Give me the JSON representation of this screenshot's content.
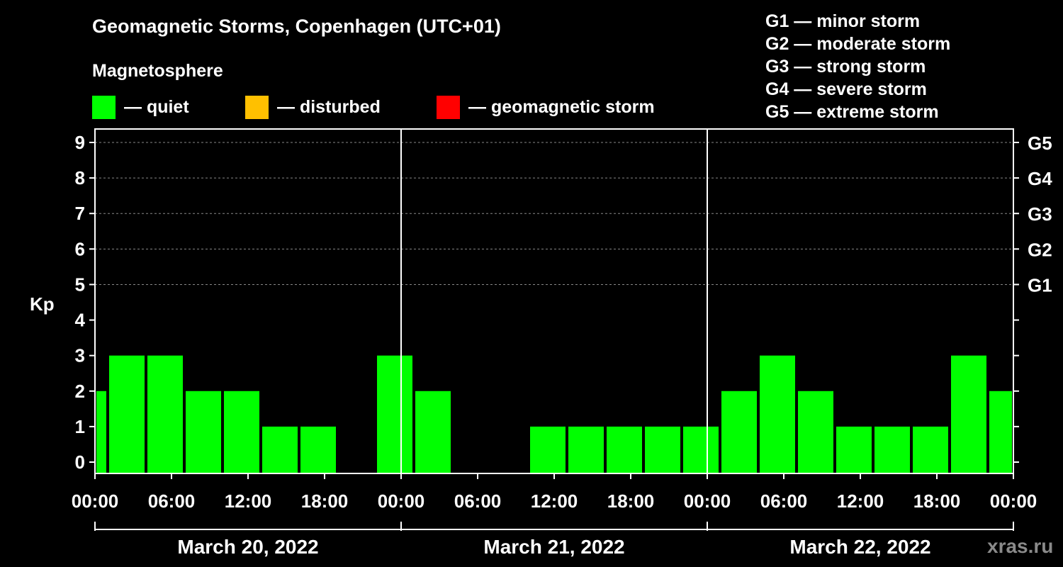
{
  "chart_data": {
    "type": "bar",
    "title": "Geomagnetic Storms, Copenhagen (UTC+01)",
    "subtitle": "Magnetosphere",
    "ylabel": "Kp",
    "ylim": [
      0,
      9
    ],
    "yticks": [
      "0",
      "1",
      "2",
      "3",
      "4",
      "5",
      "6",
      "7",
      "8",
      "9"
    ],
    "y2ticks": [
      {
        "kp": 5,
        "label": "G1"
      },
      {
        "kp": 6,
        "label": "G2"
      },
      {
        "kp": 7,
        "label": "G3"
      },
      {
        "kp": 8,
        "label": "G4"
      },
      {
        "kp": 9,
        "label": "G5"
      }
    ],
    "xticks": [
      "00:00",
      "06:00",
      "12:00",
      "18:00",
      "00:00",
      "06:00",
      "12:00",
      "18:00",
      "00:00",
      "06:00",
      "12:00",
      "18:00",
      "00:00"
    ],
    "days": [
      "March 20, 2022",
      "March 21, 2022",
      "March 22, 2022"
    ],
    "x_range_hours": [
      0,
      72
    ],
    "grid": "dashed horizontal at Kp 5-9",
    "bars": [
      {
        "start_hour": 0,
        "end_hour": 1,
        "value": 2
      },
      {
        "start_hour": 1,
        "end_hour": 4,
        "value": 3
      },
      {
        "start_hour": 4,
        "end_hour": 7,
        "value": 3
      },
      {
        "start_hour": 7,
        "end_hour": 10,
        "value": 2
      },
      {
        "start_hour": 10,
        "end_hour": 13,
        "value": 2
      },
      {
        "start_hour": 13,
        "end_hour": 16,
        "value": 1
      },
      {
        "start_hour": 16,
        "end_hour": 19,
        "value": 1
      },
      {
        "start_hour": 19,
        "end_hour": 22,
        "value": 0
      },
      {
        "start_hour": 22,
        "end_hour": 25,
        "value": 3
      },
      {
        "start_hour": 25,
        "end_hour": 28,
        "value": 2
      },
      {
        "start_hour": 28,
        "end_hour": 31,
        "value": 0
      },
      {
        "start_hour": 31,
        "end_hour": 34,
        "value": 0
      },
      {
        "start_hour": 34,
        "end_hour": 37,
        "value": 1
      },
      {
        "start_hour": 37,
        "end_hour": 40,
        "value": 1
      },
      {
        "start_hour": 40,
        "end_hour": 43,
        "value": 1
      },
      {
        "start_hour": 43,
        "end_hour": 46,
        "value": 1
      },
      {
        "start_hour": 46,
        "end_hour": 49,
        "value": 1
      },
      {
        "start_hour": 49,
        "end_hour": 52,
        "value": 2
      },
      {
        "start_hour": 52,
        "end_hour": 55,
        "value": 3
      },
      {
        "start_hour": 55,
        "end_hour": 58,
        "value": 2
      },
      {
        "start_hour": 58,
        "end_hour": 61,
        "value": 1
      },
      {
        "start_hour": 61,
        "end_hour": 64,
        "value": 1
      },
      {
        "start_hour": 64,
        "end_hour": 67,
        "value": 1
      },
      {
        "start_hour": 67,
        "end_hour": 70,
        "value": 3
      },
      {
        "start_hour": 70,
        "end_hour": 72,
        "value": 2
      }
    ],
    "bar_color": "#00ff00"
  },
  "legend": {
    "items": [
      {
        "label": "— quiet",
        "color": "#00ff00"
      },
      {
        "label": "— disturbed",
        "color": "#ffc000"
      },
      {
        "label": "— geomagnetic storm",
        "color": "#ff0000"
      }
    ]
  },
  "gscale": [
    "G1 — minor storm",
    "G2 — moderate storm",
    "G3 — strong storm",
    "G4 — severe storm",
    "G5 — extreme storm"
  ],
  "watermark": "xras.ru"
}
